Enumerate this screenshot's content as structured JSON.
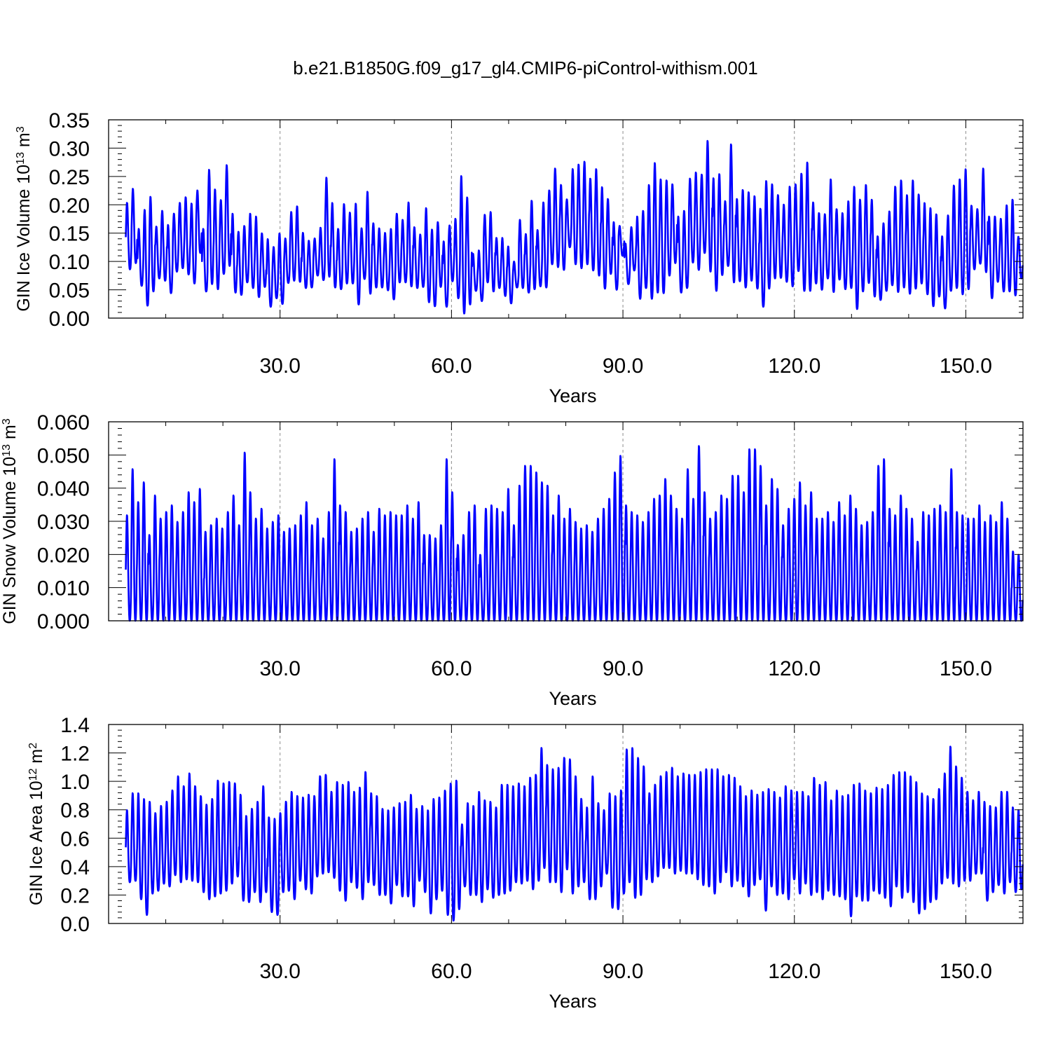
{
  "title": "b.e21.B1850G.f09_g17_gl4.CMIP6-piControl-withism.001",
  "colors": {
    "series": "#0000ff",
    "grid": "#8c8c8c",
    "axis": "#000000"
  },
  "chart_data": [
    {
      "type": "line",
      "ylabel": "GIN Ice Volume 10",
      "ylabel_exp": "13",
      "ylabel_unit": " m",
      "ylabel_unit_exp": "3",
      "xlabel": "Years",
      "xlim": [
        0,
        160
      ],
      "ylim": [
        0,
        0.35
      ],
      "x_ticks": [
        "30.0",
        "60.0",
        "90.0",
        "120.0",
        "150.0"
      ],
      "y_ticks": [
        "0.00",
        "0.05",
        "0.10",
        "0.15",
        "0.20",
        "0.25",
        "0.30",
        "0.35"
      ],
      "grid": "dashed vertical at major x ticks",
      "annual_series": {
        "year_start": 0,
        "year_end": 160,
        "max": [
          0.204,
          0.229,
          0.158,
          0.192,
          0.215,
          0.162,
          0.19,
          0.165,
          0.185,
          0.204,
          0.214,
          0.203,
          0.226,
          0.158,
          0.263,
          0.228,
          0.209,
          0.271,
          0.185,
          0.153,
          0.163,
          0.185,
          0.18,
          0.15,
          0.14,
          0.126,
          0.15,
          0.141,
          0.188,
          0.198,
          0.151,
          0.137,
          0.141,
          0.16,
          0.249,
          0.204,
          0.158,
          0.202,
          0.187,
          0.203,
          0.159,
          0.224,
          0.168,
          0.159,
          0.151,
          0.158,
          0.185,
          0.174,
          0.205,
          0.161,
          0.148,
          0.195,
          0.157,
          0.17,
          0.136,
          0.164,
          0.176,
          0.252,
          0.214,
          0.114,
          0.12,
          0.183,
          0.188,
          0.142,
          0.142,
          0.127,
          0.1,
          0.174,
          0.149,
          0.208,
          0.156,
          0.205,
          0.226,
          0.265,
          0.236,
          0.21,
          0.264,
          0.272,
          0.277,
          0.247,
          0.264,
          0.232,
          0.211,
          0.17,
          0.163,
          0.132,
          0.161,
          0.18,
          0.19,
          0.236,
          0.275,
          0.246,
          0.244,
          0.237,
          0.18,
          0.19,
          0.247,
          0.258,
          0.254,
          0.314,
          0.248,
          0.255,
          0.207,
          0.308,
          0.211,
          0.227,
          0.223,
          0.216,
          0.194,
          0.243,
          0.237,
          0.218,
          0.201,
          0.233,
          0.237,
          0.256,
          0.276,
          0.205,
          0.186,
          0.184,
          0.246,
          0.193,
          0.186,
          0.207,
          0.233,
          0.21,
          0.236,
          0.21,
          0.145,
          0.168,
          0.189,
          0.233,
          0.244,
          0.218,
          0.244,
          0.219,
          0.204,
          0.195,
          0.184,
          0.145,
          0.182,
          0.235,
          0.246,
          0.264,
          0.199,
          0.193,
          0.265,
          0.18,
          0.18,
          0.176,
          0.2,
          0.21,
          0.144
        ],
        "min": [
          0.086,
          0.097,
          0.057,
          0.022,
          0.047,
          0.07,
          0.066,
          0.044,
          0.082,
          0.088,
          0.077,
          0.061,
          0.115,
          0.047,
          0.06,
          0.051,
          0.078,
          0.092,
          0.045,
          0.041,
          0.063,
          0.053,
          0.037,
          0.055,
          0.02,
          0.035,
          0.025,
          0.062,
          0.066,
          0.064,
          0.053,
          0.054,
          0.075,
          0.067,
          0.073,
          0.054,
          0.051,
          0.061,
          0.061,
          0.024,
          0.069,
          0.043,
          0.054,
          0.054,
          0.049,
          0.033,
          0.063,
          0.063,
          0.056,
          0.053,
          0.055,
          0.028,
          0.021,
          0.055,
          0.02,
          0.065,
          0.035,
          0.008,
          0.024,
          0.048,
          0.03,
          0.063,
          0.047,
          0.053,
          0.039,
          0.026,
          0.054,
          0.053,
          0.045,
          0.051,
          0.056,
          0.054,
          0.095,
          0.09,
          0.085,
          0.125,
          0.095,
          0.088,
          0.095,
          0.084,
          0.075,
          0.052,
          0.078,
          0.05,
          0.11,
          0.06,
          0.084,
          0.034,
          0.053,
          0.034,
          0.045,
          0.044,
          0.075,
          0.097,
          0.045,
          0.053,
          0.098,
          0.085,
          0.115,
          0.082,
          0.048,
          0.076,
          0.092,
          0.063,
          0.065,
          0.054,
          0.066,
          0.052,
          0.02,
          0.052,
          0.07,
          0.071,
          0.064,
          0.056,
          0.083,
          0.048,
          0.048,
          0.061,
          0.05,
          0.07,
          0.046,
          0.068,
          0.051,
          0.053,
          0.016,
          0.047,
          0.062,
          0.038,
          0.032,
          0.048,
          0.058,
          0.046,
          0.054,
          0.043,
          0.052,
          0.061,
          0.042,
          0.021,
          0.038,
          0.017,
          0.048,
          0.053,
          0.042,
          0.051,
          0.086,
          0.096,
          0.081,
          0.035,
          0.064,
          0.047,
          0.047,
          0.04,
          0.07,
          0.047,
          0.08,
          0.1,
          0.1,
          0.12,
          0.11,
          0.13
        ]
      }
    },
    {
      "type": "line",
      "ylabel": "GIN Snow Volume 10",
      "ylabel_exp": "13",
      "ylabel_unit": " m",
      "ylabel_unit_exp": "3",
      "xlabel": "Years",
      "xlim": [
        0,
        160
      ],
      "ylim": [
        0,
        0.06
      ],
      "x_ticks": [
        "30.0",
        "60.0",
        "90.0",
        "120.0",
        "150.0"
      ],
      "y_ticks": [
        "0.000",
        "0.010",
        "0.020",
        "0.030",
        "0.040",
        "0.050",
        "0.060"
      ],
      "grid": "dashed vertical at major x ticks",
      "annual_series": {
        "year_start": 0,
        "year_end": 160,
        "max": [
          0.032,
          0.046,
          0.036,
          0.042,
          0.026,
          0.038,
          0.031,
          0.033,
          0.035,
          0.03,
          0.033,
          0.039,
          0.036,
          0.04,
          0.027,
          0.029,
          0.031,
          0.028,
          0.033,
          0.038,
          0.029,
          0.051,
          0.039,
          0.031,
          0.034,
          0.028,
          0.03,
          0.032,
          0.027,
          0.028,
          0.029,
          0.032,
          0.036,
          0.029,
          0.031,
          0.025,
          0.033,
          0.049,
          0.035,
          0.033,
          0.027,
          0.028,
          0.031,
          0.033,
          0.027,
          0.034,
          0.032,
          0.033,
          0.032,
          0.032,
          0.035,
          0.031,
          0.036,
          0.026,
          0.026,
          0.025,
          0.029,
          0.049,
          0.039,
          0.023,
          0.026,
          0.033,
          0.035,
          0.02,
          0.034,
          0.035,
          0.034,
          0.033,
          0.04,
          0.029,
          0.041,
          0.047,
          0.047,
          0.045,
          0.042,
          0.041,
          0.032,
          0.038,
          0.031,
          0.034,
          0.03,
          0.028,
          0.029,
          0.027,
          0.031,
          0.034,
          0.037,
          0.045,
          0.05,
          0.035,
          0.033,
          0.032,
          0.03,
          0.033,
          0.037,
          0.038,
          0.043,
          0.038,
          0.034,
          0.031,
          0.046,
          0.037,
          0.053,
          0.039,
          0.031,
          0.033,
          0.038,
          0.037,
          0.044,
          0.044,
          0.039,
          0.052,
          0.052,
          0.047,
          0.035,
          0.043,
          0.04,
          0.029,
          0.034,
          0.037,
          0.042,
          0.035,
          0.039,
          0.031,
          0.031,
          0.033,
          0.03,
          0.036,
          0.032,
          0.038,
          0.034,
          0.029,
          0.03,
          0.033,
          0.047,
          0.049,
          0.034,
          0.032,
          0.038,
          0.034,
          0.031,
          0.024,
          0.033,
          0.032,
          0.034,
          0.035,
          0.033,
          0.046,
          0.033,
          0.032,
          0.031,
          0.031,
          0.035,
          0.03,
          0.032,
          0.03,
          0.036,
          0.031,
          0.021,
          0.02
        ],
        "min": [
          0.0,
          0.0,
          0.0,
          0.0,
          0.0,
          0.0,
          0.0,
          0.0,
          0.0,
          0.0,
          0.0,
          0.0,
          0.0,
          0.0,
          0.0,
          0.0,
          0.0,
          0.0,
          0.0,
          0.0,
          0.0,
          0.0,
          0.0,
          0.0,
          0.0,
          0.0,
          0.0,
          0.0,
          0.0,
          0.0,
          0.0,
          0.0,
          0.0,
          0.0,
          0.0,
          0.0,
          0.0,
          0.0,
          0.0,
          0.0,
          0.0,
          0.0,
          0.0,
          0.0,
          0.0,
          0.0,
          0.0,
          0.0,
          0.0,
          0.0,
          0.0,
          0.0,
          0.0,
          0.0,
          0.0,
          0.0,
          0.0,
          0.0,
          0.0,
          0.0,
          0.0,
          0.0,
          0.0,
          0.0,
          0.0,
          0.0,
          0.0,
          0.0,
          0.0,
          0.0,
          0.0,
          0.0,
          0.0,
          0.0,
          0.0,
          0.0,
          0.0,
          0.0,
          0.0,
          0.0,
          0.0,
          0.0,
          0.0,
          0.0,
          0.0,
          0.0,
          0.0,
          0.0,
          0.0,
          0.0,
          0.0,
          0.0,
          0.0,
          0.0,
          0.0,
          0.0,
          0.0,
          0.0,
          0.0,
          0.0,
          0.0,
          0.0,
          0.0,
          0.0,
          0.0,
          0.0,
          0.0,
          0.0,
          0.0,
          0.0,
          0.0,
          0.0,
          0.0,
          0.0,
          0.0,
          0.0,
          0.0,
          0.0,
          0.0,
          0.0,
          0.0,
          0.0,
          0.0,
          0.0,
          0.0,
          0.0,
          0.0,
          0.0,
          0.0,
          0.0,
          0.0,
          0.0,
          0.0,
          0.0,
          0.0,
          0.0,
          0.0,
          0.0,
          0.0,
          0.0,
          0.0,
          0.0,
          0.0,
          0.0,
          0.0,
          0.0,
          0.0,
          0.0,
          0.0,
          0.0,
          0.0,
          0.0,
          0.0,
          0.0,
          0.0,
          0.0,
          0.0,
          0.0,
          0.0,
          0.0,
          0.0,
          0.0
        ]
      }
    },
    {
      "type": "line",
      "ylabel": "GIN Ice Area 10",
      "ylabel_exp": "12",
      "ylabel_unit": " m",
      "ylabel_unit_exp": "2",
      "xlabel": "Years",
      "xlim": [
        0,
        160
      ],
      "ylim": [
        0,
        1.4
      ],
      "x_ticks": [
        "30.0",
        "60.0",
        "90.0",
        "120.0",
        "150.0"
      ],
      "y_ticks": [
        "0.0",
        "0.2",
        "0.4",
        "0.6",
        "0.8",
        "1.0",
        "1.2",
        "1.4"
      ],
      "grid": "dashed vertical at major x ticks",
      "annual_series": {
        "year_start": 0,
        "year_end": 160,
        "max": [
          0.8,
          0.92,
          0.92,
          0.88,
          0.86,
          0.78,
          0.83,
          0.86,
          0.94,
          1.04,
          0.97,
          1.06,
          0.97,
          0.9,
          0.84,
          0.88,
          1.01,
          0.99,
          1.0,
          0.99,
          0.91,
          0.76,
          0.81,
          0.86,
          0.97,
          0.75,
          0.74,
          0.78,
          0.86,
          0.93,
          0.9,
          0.89,
          0.91,
          0.9,
          1.04,
          1.05,
          0.93,
          1.0,
          0.98,
          1.0,
          0.93,
          0.96,
          1.07,
          0.92,
          0.9,
          0.81,
          0.8,
          0.82,
          0.85,
          0.86,
          0.91,
          0.81,
          0.83,
          0.8,
          0.88,
          0.89,
          0.94,
          0.99,
          1.01,
          0.7,
          0.85,
          0.83,
          0.93,
          0.87,
          0.86,
          0.82,
          0.98,
          0.98,
          0.97,
          0.99,
          0.97,
          1.03,
          1.05,
          1.24,
          1.12,
          1.09,
          1.1,
          1.17,
          1.16,
          1.04,
          0.88,
          0.82,
          1.04,
          0.85,
          0.8,
          0.92,
          0.9,
          0.94,
          1.23,
          1.24,
          1.17,
          1.11,
          0.92,
          0.98,
          1.04,
          1.07,
          1.1,
          1.04,
          1.06,
          1.05,
          1.05,
          1.07,
          1.09,
          1.09,
          1.09,
          1.04,
          1.05,
          1.03,
          0.97,
          0.9,
          0.94,
          0.91,
          0.93,
          0.95,
          0.93,
          0.89,
          0.97,
          0.94,
          0.93,
          0.93,
          0.9,
          1.03,
          0.98,
          1.0,
          0.87,
          0.94,
          0.9,
          0.91,
          0.98,
          0.99,
          0.94,
          0.92,
          0.96,
          0.95,
          0.98,
          1.05,
          1.07,
          1.07,
          1.04,
          1.0,
          0.92,
          0.9,
          0.88,
          0.95,
          1.06,
          1.25,
          1.11,
          1.03,
          0.93,
          0.87,
          0.93,
          0.86,
          0.83,
          0.82,
          0.93,
          0.93,
          0.82,
          0.8
        ],
        "min": [
          0.29,
          0.3,
          0.17,
          0.06,
          0.21,
          0.23,
          0.28,
          0.26,
          0.34,
          0.29,
          0.31,
          0.3,
          0.29,
          0.22,
          0.17,
          0.19,
          0.21,
          0.23,
          0.28,
          0.33,
          0.16,
          0.15,
          0.22,
          0.15,
          0.22,
          0.08,
          0.06,
          0.22,
          0.23,
          0.17,
          0.3,
          0.24,
          0.21,
          0.33,
          0.35,
          0.36,
          0.32,
          0.23,
          0.16,
          0.29,
          0.25,
          0.17,
          0.29,
          0.27,
          0.2,
          0.2,
          0.14,
          0.27,
          0.19,
          0.19,
          0.12,
          0.3,
          0.22,
          0.07,
          0.17,
          0.23,
          0.06,
          0.02,
          0.1,
          0.26,
          0.2,
          0.2,
          0.15,
          0.24,
          0.18,
          0.2,
          0.21,
          0.23,
          0.29,
          0.28,
          0.3,
          0.24,
          0.3,
          0.39,
          0.29,
          0.29,
          0.22,
          0.38,
          0.21,
          0.26,
          0.29,
          0.17,
          0.17,
          0.26,
          0.35,
          0.11,
          0.1,
          0.21,
          0.29,
          0.18,
          0.2,
          0.31,
          0.29,
          0.33,
          0.39,
          0.39,
          0.35,
          0.37,
          0.35,
          0.35,
          0.31,
          0.27,
          0.26,
          0.21,
          0.29,
          0.36,
          0.26,
          0.3,
          0.26,
          0.19,
          0.27,
          0.31,
          0.09,
          0.26,
          0.2,
          0.21,
          0.17,
          0.31,
          0.21,
          0.28,
          0.2,
          0.22,
          0.17,
          0.23,
          0.2,
          0.19,
          0.17,
          0.05,
          0.19,
          0.16,
          0.16,
          0.23,
          0.21,
          0.18,
          0.12,
          0.26,
          0.18,
          0.22,
          0.15,
          0.07,
          0.1,
          0.15,
          0.17,
          0.28,
          0.32,
          0.28,
          0.26,
          0.3,
          0.3,
          0.35,
          0.35,
          0.16,
          0.22,
          0.27,
          0.21,
          0.29,
          0.22,
          0.24,
          0.35,
          0.45
        ]
      }
    }
  ]
}
